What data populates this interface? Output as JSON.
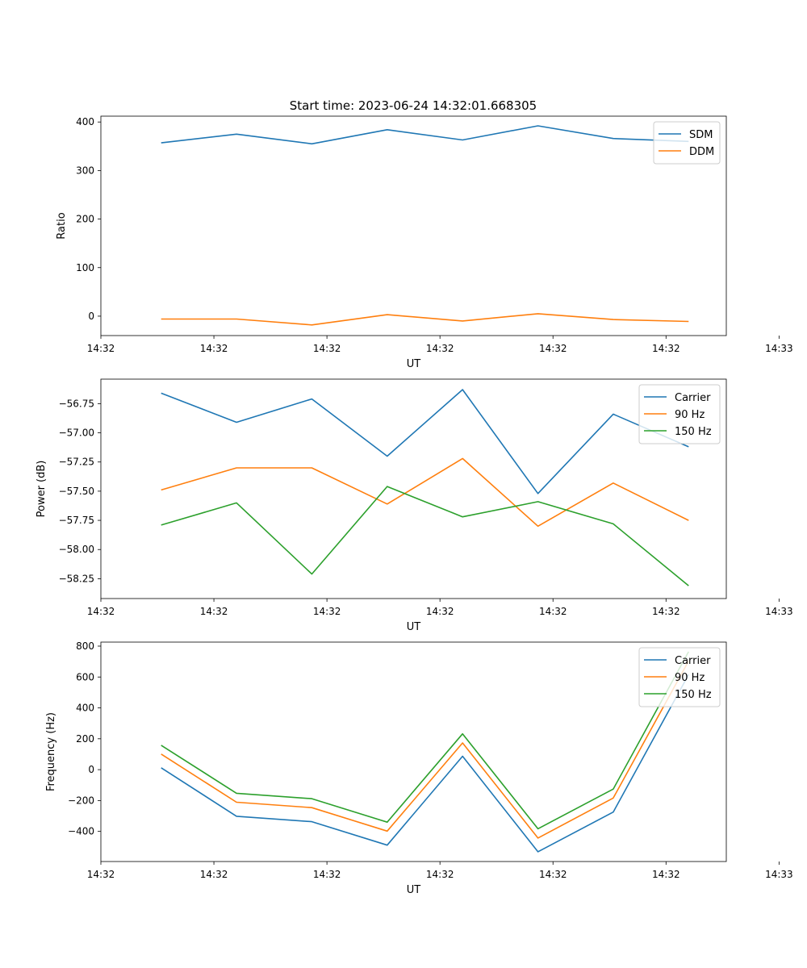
{
  "figure": {
    "title": "Start time: 2023-06-24 14:32:01.668305"
  },
  "chart_data": [
    {
      "type": "line",
      "title": "Start time: 2023-06-24 14:32:01.668305",
      "xlabel": "UT",
      "ylabel": "Ratio",
      "x": [
        1,
        2,
        3,
        4,
        5,
        6,
        7,
        8
      ],
      "xlim": [
        0.2,
        8.5
      ],
      "x_ticks": [
        {
          "pos": 0.2,
          "label": "14:32"
        },
        {
          "pos": 1.7,
          "label": "14:32"
        },
        {
          "pos": 3.2,
          "label": "14:32"
        },
        {
          "pos": 4.7,
          "label": "14:32"
        },
        {
          "pos": 6.2,
          "label": "14:32"
        },
        {
          "pos": 7.7,
          "label": "14:32"
        },
        {
          "pos": 9.2,
          "label": "14:33"
        }
      ],
      "ylim": [
        -40,
        412
      ],
      "y_ticks": [
        {
          "value": 0,
          "label": "0"
        },
        {
          "value": 100,
          "label": "100"
        },
        {
          "value": 200,
          "label": "200"
        },
        {
          "value": 300,
          "label": "300"
        },
        {
          "value": 400,
          "label": "400"
        }
      ],
      "legend": "upper right",
      "grid": false,
      "series": [
        {
          "name": "SDM",
          "color": "#1f77b4",
          "values": [
            357,
            375,
            355,
            384,
            363,
            392,
            366,
            360
          ]
        },
        {
          "name": "DDM",
          "color": "#ff7f0e",
          "values": [
            -6,
            -6,
            -18,
            3,
            -10,
            5,
            -7,
            -11
          ]
        }
      ]
    },
    {
      "type": "line",
      "title": "",
      "xlabel": "UT",
      "ylabel": "Power (dB)",
      "x": [
        1,
        2,
        3,
        4,
        5,
        6,
        7,
        8
      ],
      "xlim": [
        0.2,
        8.5
      ],
      "x_ticks": [
        {
          "pos": 0.2,
          "label": "14:32"
        },
        {
          "pos": 1.7,
          "label": "14:32"
        },
        {
          "pos": 3.2,
          "label": "14:32"
        },
        {
          "pos": 4.7,
          "label": "14:32"
        },
        {
          "pos": 6.2,
          "label": "14:32"
        },
        {
          "pos": 7.7,
          "label": "14:32"
        },
        {
          "pos": 9.2,
          "label": "14:33"
        }
      ],
      "ylim": [
        -58.42,
        -56.54
      ],
      "y_ticks": [
        {
          "value": -58.25,
          "label": "−58.25"
        },
        {
          "value": -58.0,
          "label": "−58.00"
        },
        {
          "value": -57.75,
          "label": "−57.75"
        },
        {
          "value": -57.5,
          "label": "−57.50"
        },
        {
          "value": -57.25,
          "label": "−57.25"
        },
        {
          "value": -57.0,
          "label": "−57.00"
        },
        {
          "value": -56.75,
          "label": "−56.75"
        }
      ],
      "legend": "upper right",
      "grid": false,
      "series": [
        {
          "name": "Carrier",
          "color": "#1f77b4",
          "values": [
            -56.66,
            -56.91,
            -56.71,
            -57.2,
            -56.63,
            -57.52,
            -56.84,
            -57.12
          ]
        },
        {
          "name": "90 Hz",
          "color": "#ff7f0e",
          "values": [
            -57.49,
            -57.3,
            -57.3,
            -57.61,
            -57.22,
            -57.8,
            -57.43,
            -57.75
          ]
        },
        {
          "name": "150 Hz",
          "color": "#2ca02c",
          "values": [
            -57.79,
            -57.6,
            -58.21,
            -57.46,
            -57.72,
            -57.59,
            -57.78,
            -58.31
          ]
        }
      ]
    },
    {
      "type": "line",
      "title": "",
      "xlabel": "UT",
      "ylabel": "Frequency (Hz)",
      "x": [
        1,
        2,
        3,
        4,
        5,
        6,
        7,
        8
      ],
      "xlim": [
        0.2,
        8.5
      ],
      "x_ticks": [
        {
          "pos": 0.2,
          "label": "14:32"
        },
        {
          "pos": 1.7,
          "label": "14:32"
        },
        {
          "pos": 3.2,
          "label": "14:32"
        },
        {
          "pos": 4.7,
          "label": "14:32"
        },
        {
          "pos": 6.2,
          "label": "14:32"
        },
        {
          "pos": 7.7,
          "label": "14:32"
        },
        {
          "pos": 9.2,
          "label": "14:33"
        }
      ],
      "ylim": [
        -595,
        826
      ],
      "y_ticks": [
        {
          "value": -400,
          "label": "−400"
        },
        {
          "value": -200,
          "label": "−200"
        },
        {
          "value": 0,
          "label": "0"
        },
        {
          "value": 200,
          "label": "200"
        },
        {
          "value": 400,
          "label": "400"
        },
        {
          "value": 600,
          "label": "600"
        },
        {
          "value": 800,
          "label": "800"
        }
      ],
      "legend": "upper right",
      "grid": false,
      "series": [
        {
          "name": "Carrier",
          "color": "#1f77b4",
          "values": [
            12,
            -302,
            -337,
            -489,
            87,
            -532,
            -275,
            616
          ]
        },
        {
          "name": "90 Hz",
          "color": "#ff7f0e",
          "values": [
            101,
            -211,
            -246,
            -398,
            173,
            -443,
            -184,
            704
          ]
        },
        {
          "name": "150 Hz",
          "color": "#2ca02c",
          "values": [
            158,
            -153,
            -188,
            -340,
            232,
            -383,
            -126,
            764
          ]
        }
      ]
    }
  ]
}
